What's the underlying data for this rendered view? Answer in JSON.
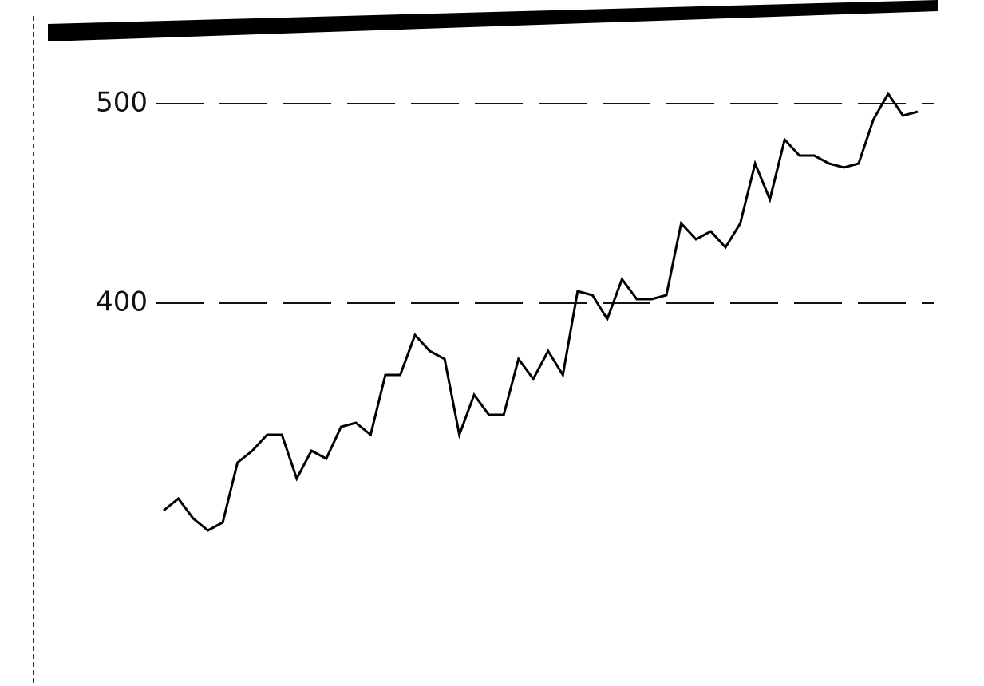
{
  "chart_data": {
    "type": "line",
    "series": [
      {
        "color": "#000000",
        "values": [
          296,
          302,
          292,
          286,
          290,
          320,
          326,
          334,
          334,
          312,
          326,
          322,
          338,
          340,
          334,
          364,
          364,
          384,
          376,
          372,
          334,
          354,
          344,
          344,
          372,
          362,
          376,
          364,
          406,
          404,
          392,
          412,
          402,
          402,
          404,
          440,
          432,
          436,
          428,
          440,
          470,
          452,
          482,
          474,
          474,
          470,
          468,
          470,
          492,
          505,
          494,
          496
        ]
      }
    ],
    "ylim": [
      270,
      510
    ],
    "yticks": [
      400,
      500
    ],
    "grid": true
  }
}
